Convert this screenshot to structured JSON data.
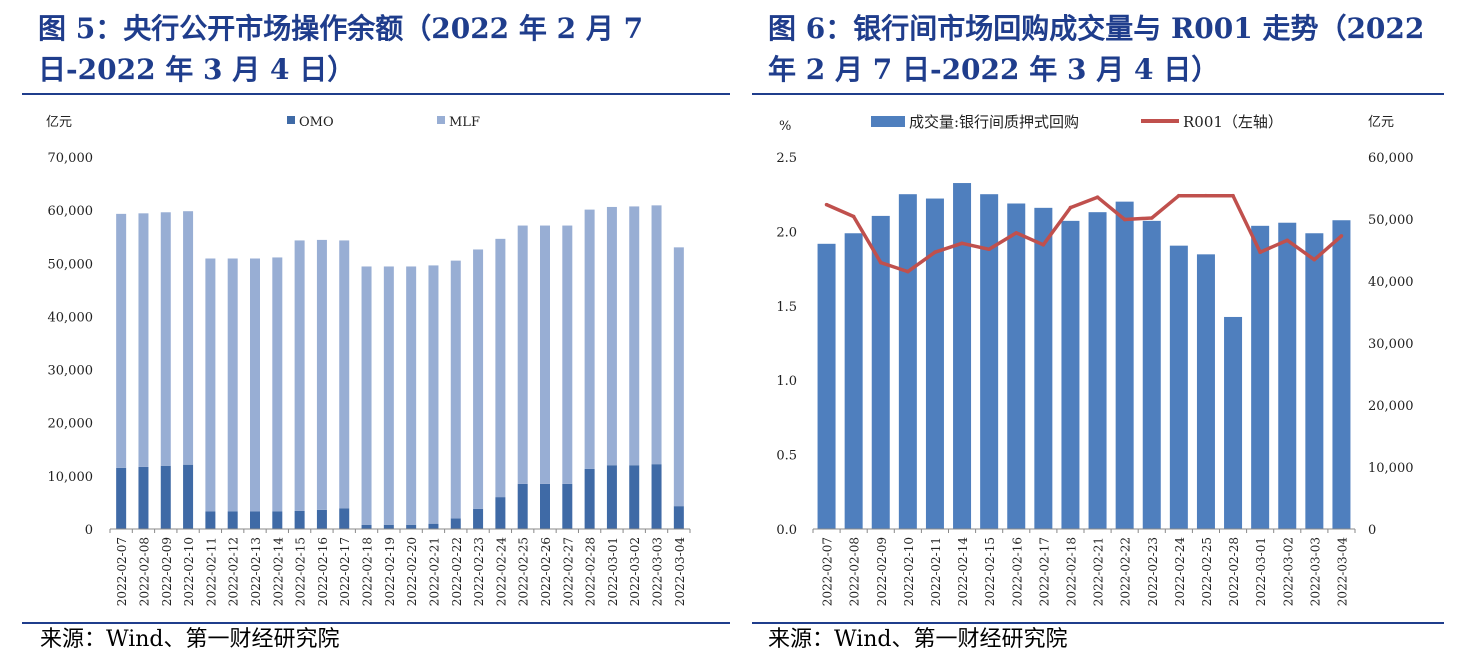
{
  "titles": {
    "left": "图 5：央行公开市场操作余额（2022 年 2 月 7 日-2022 年 3 月 4 日）",
    "right": "图 6：银行间市场回购成交量与 R001 走势（2022 年 2 月 7 日-2022 年 3 月 4 日）"
  },
  "sources": {
    "left": "来源：Wind、第一财经研究院",
    "right": "来源：Wind、第一财经研究院"
  },
  "chart_data": [
    {
      "type": "bar",
      "stacked": true,
      "ylabel": "亿元",
      "ylim": [
        0,
        70000
      ],
      "yticks": [
        0,
        10000,
        20000,
        30000,
        40000,
        50000,
        60000,
        70000
      ],
      "ytick_labels": [
        "0",
        "10,000",
        "20,000",
        "30,000",
        "40,000",
        "50,000",
        "60,000",
        "70,000"
      ],
      "legend_position": "top",
      "grid": false,
      "colors": {
        "OMO": "#3f6aa6",
        "MLF": "#98aed4"
      },
      "categories": [
        "2022-02-07",
        "2022-02-08",
        "2022-02-09",
        "2022-02-10",
        "2022-02-11",
        "2022-02-12",
        "2022-02-13",
        "2022-02-14",
        "2022-02-15",
        "2022-02-16",
        "2022-02-17",
        "2022-02-18",
        "2022-02-19",
        "2022-02-20",
        "2022-02-21",
        "2022-02-22",
        "2022-02-23",
        "2022-02-24",
        "2022-02-25",
        "2022-02-26",
        "2022-02-27",
        "2022-02-28",
        "2022-03-01",
        "2022-03-02",
        "2022-03-03",
        "2022-03-04"
      ],
      "series": [
        {
          "name": "OMO",
          "values": [
            11500,
            11700,
            11900,
            12100,
            3300,
            3300,
            3300,
            3300,
            3400,
            3600,
            3900,
            800,
            800,
            800,
            1000,
            2000,
            3800,
            6000,
            8500,
            8500,
            8500,
            11300,
            12000,
            12000,
            12200,
            4300
          ]
        },
        {
          "name": "MLF",
          "values": [
            47800,
            47700,
            47700,
            47700,
            47600,
            47600,
            47600,
            47800,
            50900,
            50800,
            50400,
            48600,
            48600,
            48600,
            48600,
            48500,
            48800,
            48600,
            48600,
            48600,
            48600,
            48800,
            48600,
            48700,
            48700,
            48700
          ]
        }
      ]
    },
    {
      "type": "bar+line",
      "ylabel_left": "%",
      "ylabel_right": "亿元",
      "ylim_left": [
        0,
        2.5
      ],
      "ylim_right": [
        0,
        60000
      ],
      "yticks_left": [
        0.0,
        0.5,
        1.0,
        1.5,
        2.0,
        2.5
      ],
      "ytick_labels_left": [
        "0.0",
        "0.5",
        "1.0",
        "1.5",
        "2.0",
        "2.5"
      ],
      "yticks_right": [
        0,
        10000,
        20000,
        30000,
        40000,
        50000,
        60000
      ],
      "ytick_labels_right": [
        "0",
        "10,000",
        "20,000",
        "30,000",
        "40,000",
        "50,000",
        "60,000"
      ],
      "legend_position": "top",
      "grid": false,
      "colors": {
        "bar": "#4f7fbe",
        "line": "#c0504d"
      },
      "categories": [
        "2022-02-07",
        "2022-02-08",
        "2022-02-09",
        "2022-02-10",
        "2022-02-11",
        "2022-02-14",
        "2022-02-15",
        "2022-02-16",
        "2022-02-17",
        "2022-02-18",
        "2022-02-21",
        "2022-02-22",
        "2022-02-23",
        "2022-02-24",
        "2022-02-25",
        "2022-02-28",
        "2022-03-01",
        "2022-03-02",
        "2022-03-03",
        "2022-03-04"
      ],
      "series": [
        {
          "name": "成交量:银行间质押式回购",
          "axis": "right",
          "kind": "bar",
          "values": [
            46000,
            47700,
            50500,
            54000,
            53300,
            55800,
            54000,
            52500,
            51800,
            49700,
            51100,
            52800,
            49700,
            45700,
            44300,
            34200,
            48900,
            49400,
            47700,
            49800
          ]
        },
        {
          "name": "R001（左轴）",
          "axis": "left",
          "kind": "line",
          "values": [
            2.18,
            2.1,
            1.79,
            1.73,
            1.86,
            1.92,
            1.88,
            1.99,
            1.91,
            2.16,
            2.23,
            2.08,
            2.09,
            2.24,
            2.24,
            2.24,
            1.86,
            1.94,
            1.81,
            1.97
          ]
        }
      ]
    }
  ]
}
